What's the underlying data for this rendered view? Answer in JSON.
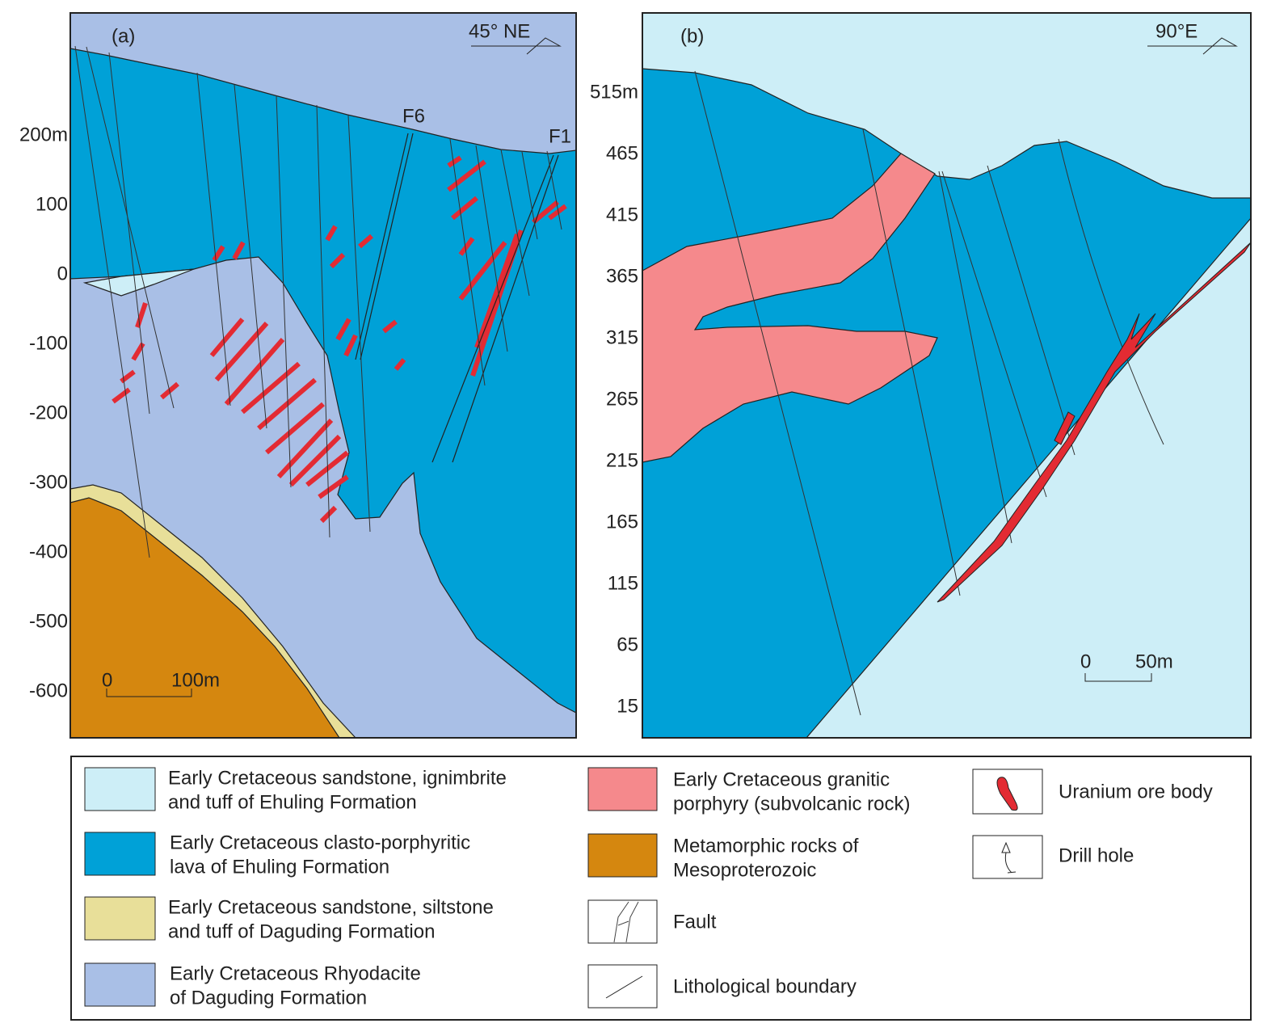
{
  "panels": {
    "a": {
      "label": "(a)",
      "direction": "45° NE",
      "faults": [
        "F6",
        "F1"
      ],
      "depth_labels": [
        "200m",
        "100",
        "0",
        "-100",
        "-200",
        "-300",
        "-400",
        "-500",
        "-600"
      ],
      "scale": [
        "0",
        "100m"
      ]
    },
    "b": {
      "label": "(b)",
      "direction": "90°E",
      "depth_labels": [
        "515m",
        "465",
        "415",
        "365",
        "315",
        "265",
        "215",
        "165",
        "115",
        "65",
        "15"
      ],
      "scale": [
        "0",
        "50m"
      ]
    }
  },
  "legend": [
    {
      "lines": [
        "Early Cretaceous sandstone, ignimbrite",
        "and tuff of Ehuling Formation"
      ]
    },
    {
      "lines": [
        "Early Cretaceous clasto-porphyritic",
        "lava of Ehuling Formation"
      ]
    },
    {
      "lines": [
        "Early Cretaceous sandstone, siltstone",
        "and tuff of Daguding Formation"
      ]
    },
    {
      "lines": [
        "Early Cretaceous Rhyodacite",
        "of Daguding Formation"
      ]
    },
    {
      "lines": [
        "Early Cretaceous granitic",
        "porphyry (subvolcanic rock)"
      ]
    },
    {
      "lines": [
        "Metamorphic rocks of",
        "Mesoproterozoic"
      ]
    },
    {
      "lines": [
        "Fault"
      ]
    },
    {
      "lines": [
        "Lithological boundary"
      ]
    },
    {
      "lines": [
        "Uranium ore body"
      ]
    },
    {
      "lines": [
        "Drill hole"
      ]
    }
  ]
}
